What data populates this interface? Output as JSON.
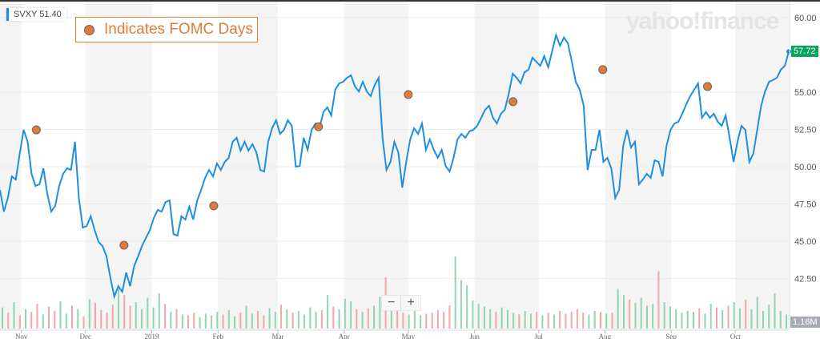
{
  "ticker": {
    "symbol": "SVXY",
    "value": "51.40"
  },
  "legend": {
    "label": "Indicates FOMC Days",
    "marker_color": "#e07b39"
  },
  "watermark": "yahoo!finance",
  "zoom_controls": {
    "minus": "−",
    "plus": "+"
  },
  "last_price_tag": "57.72",
  "volume_tag": "1.16M",
  "colors": {
    "line": "#1e8fdf",
    "up": "#8fd6b0",
    "down": "#f2a6a6",
    "band": "#f4f4f4",
    "fomc": "#e07b39",
    "last": "#0aa35b"
  },
  "chart_data": {
    "type": "line",
    "title": "SVXY",
    "xlabel": "",
    "ylabel": "",
    "ylim": [
      40,
      60
    ],
    "yticks": [
      "60.00",
      "55.00",
      "52.50",
      "50.00",
      "47.50",
      "45.00",
      "42.50"
    ],
    "x_start": "2018-10-22",
    "x_end": "2019-10-26",
    "xticks": [
      {
        "label": "Nov",
        "date": "2018-11-01"
      },
      {
        "label": "Dec",
        "date": "2018-12-01"
      },
      {
        "label": "2019",
        "date": "2019-01-01"
      },
      {
        "label": "Feb",
        "date": "2019-02-01"
      },
      {
        "label": "Mar",
        "date": "2019-03-01"
      },
      {
        "label": "Apr",
        "date": "2019-04-01"
      },
      {
        "label": "May",
        "date": "2019-05-01"
      },
      {
        "label": "Jun",
        "date": "2019-06-01"
      },
      {
        "label": "Jul",
        "date": "2019-07-01"
      },
      {
        "label": "Aug",
        "date": "2019-08-01"
      },
      {
        "label": "Sep",
        "date": "2019-09-01"
      },
      {
        "label": "Oct",
        "date": "2019-10-01"
      }
    ],
    "close": [
      48.44,
      46.99,
      47.9,
      49.35,
      49.14,
      50.86,
      52.47,
      51.67,
      49.52,
      48.71,
      48.82,
      49.89,
      48.17,
      46.99,
      47.37,
      48.71,
      49.52,
      49.89,
      49.78,
      51.67,
      47.9,
      45.91,
      46.02,
      46.67,
      45.75,
      44.95,
      44.68,
      43.98,
      42.53,
      41.29,
      41.99,
      41.61,
      42.9,
      41.99,
      43.33,
      43.98,
      44.68,
      45.22,
      45.75,
      46.56,
      47.1,
      46.99,
      47.63,
      47.74,
      45.48,
      45.38,
      46.67,
      46.45,
      47.31,
      46.45,
      47.74,
      48.44,
      49.25,
      49.78,
      49.35,
      50.22,
      49.78,
      50.32,
      50.59,
      51.67,
      51.94,
      51.08,
      51.67,
      51.08,
      51.51,
      50.97,
      49.78,
      49.68,
      51.67,
      52.58,
      53.12,
      52.2,
      52.47,
      53.12,
      52.74,
      50.0,
      50.05,
      51.94,
      51.13,
      52.47,
      52.9,
      52.58,
      53.66,
      53.98,
      53.44,
      55.16,
      55.59,
      55.7,
      55.97,
      56.13,
      55.38,
      55.05,
      55.7,
      55.05,
      54.73,
      55.48,
      55.97,
      51.94,
      49.78,
      50.32,
      51.67,
      50.97,
      48.6,
      50.32,
      51.83,
      52.58,
      52.2,
      52.9,
      51.13,
      51.83,
      51.13,
      50.59,
      51.13,
      50.05,
      49.68,
      50.59,
      51.83,
      52.2,
      51.94,
      52.37,
      52.47,
      52.74,
      53.28,
      53.82,
      54.09,
      53.28,
      52.9,
      53.55,
      53.82,
      54.89,
      56.24,
      55.97,
      55.59,
      56.34,
      56.51,
      57.31,
      57.04,
      56.77,
      57.42,
      56.67,
      57.74,
      58.82,
      58.12,
      58.66,
      58.28,
      57.04,
      55.7,
      55.16,
      54.09,
      49.78,
      51.13,
      51.13,
      52.47,
      50.32,
      50.59,
      49.89,
      47.9,
      48.44,
      51.4,
      52.47,
      51.29,
      51.67,
      48.82,
      49.14,
      49.52,
      49.25,
      50.43,
      50.32,
      49.35,
      51.4,
      52.47,
      52.9,
      53.01,
      53.55,
      54.19,
      54.73,
      55.16,
      55.59,
      53.28,
      53.66,
      53.28,
      53.55,
      53.01,
      52.74,
      53.44,
      51.94,
      50.32,
      51.67,
      52.74,
      52.47,
      50.32,
      50.86,
      52.47,
      54.09,
      55.05,
      55.7,
      55.81,
      55.97,
      56.51,
      56.77,
      57.72
    ],
    "fomc": [
      {
        "date": "2018-11-08",
        "price": 52.47
      },
      {
        "date": "2018-12-19",
        "price": 44.73
      },
      {
        "date": "2019-01-30",
        "price": 47.37
      },
      {
        "date": "2019-03-20",
        "price": 52.68
      },
      {
        "date": "2019-05-01",
        "price": 54.84
      },
      {
        "date": "2019-06-19",
        "price": 54.36
      },
      {
        "date": "2019-07-31",
        "price": 56.51
      },
      {
        "date": "2019-09-18",
        "price": 55.38
      }
    ],
    "volume_millions": [
      2.4,
      1.8,
      3.0,
      1.5,
      2.2,
      1.9,
      2.8,
      1.6,
      2.5,
      2.0,
      3.1,
      1.7,
      2.6,
      2.2,
      1.4,
      3.3,
      2.9,
      2.1,
      1.8,
      2.7,
      4.5,
      3.8,
      2.6,
      3.0,
      2.2,
      3.5,
      2.4,
      4.0,
      2.8,
      1.9,
      2.2,
      1.6,
      1.5,
      1.8,
      1.3,
      1.7,
      1.5,
      1.9,
      1.6,
      2.1,
      1.4,
      1.8,
      2.6,
      1.7,
      2.0,
      1.5,
      2.3,
      1.9,
      2.7,
      2.2,
      1.8,
      2.0,
      1.6,
      2.4,
      1.9,
      2.1,
      3.8,
      2.5,
      2.2,
      3.4,
      3.1,
      2.2,
      1.9,
      2.3,
      2.6,
      3.6,
      5.8,
      2.8,
      2.4,
      1.8,
      1.6,
      2.0,
      1.5,
      1.7,
      1.8,
      2.1,
      1.9,
      2.6,
      8.2,
      5.5,
      4.9,
      3.2,
      2.8,
      2.5,
      2.2,
      1.9,
      2.4,
      2.1,
      1.8,
      1.6,
      2.0,
      1.7,
      1.9,
      1.5,
      1.8,
      1.6,
      2.0,
      1.7,
      1.9,
      2.2,
      1.8,
      1.6,
      2.0,
      1.9,
      1.7,
      1.8,
      4.5,
      3.8,
      3.3,
      2.9,
      3.5,
      2.6,
      2.8,
      6.5,
      3.0,
      2.5,
      2.2,
      1.8,
      2.0,
      1.9,
      2.3,
      1.7,
      2.8,
      2.4,
      2.1,
      2.6,
      3.0,
      2.3,
      3.3,
      2.2,
      3.6,
      2.0,
      2.7,
      4.0,
      2.0,
      1.6
    ]
  }
}
